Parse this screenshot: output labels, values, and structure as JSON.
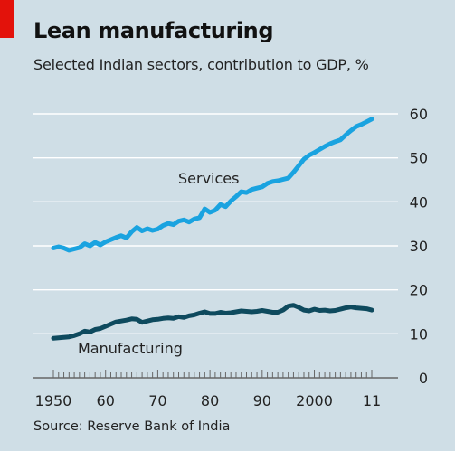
{
  "header": {
    "title": "Lean manufacturing",
    "subtitle": "Selected Indian sectors, contribution to GDP, %"
  },
  "footer": {
    "source": "Source: Reserve Bank of India"
  },
  "colors": {
    "services": "#1aa3e0",
    "manufacturing": "#0e4a5e",
    "grid": "#ffffff",
    "axis": "#666666",
    "background": "#cfdee6",
    "accent": "#e3120b"
  },
  "chart_data": {
    "type": "line",
    "title": "Lean manufacturing",
    "subtitle": "Selected Indian sectors, contribution to GDP, %",
    "xlabel": "",
    "ylabel": "",
    "xlim": [
      1950,
      2011
    ],
    "ylim": [
      0,
      60
    ],
    "y_ticks": [
      0,
      10,
      20,
      30,
      40,
      50,
      60
    ],
    "y_axis_side": "right",
    "x_ticks": [
      {
        "value": 1950,
        "label": "1950"
      },
      {
        "value": 1960,
        "label": "60"
      },
      {
        "value": 1970,
        "label": "70"
      },
      {
        "value": 1980,
        "label": "80"
      },
      {
        "value": 1990,
        "label": "90"
      },
      {
        "value": 2000,
        "label": "2000"
      },
      {
        "value": 2011,
        "label": "11"
      }
    ],
    "grid": true,
    "legend": "inline labels",
    "x": [
      1950,
      1951,
      1952,
      1953,
      1954,
      1955,
      1956,
      1957,
      1958,
      1959,
      1960,
      1961,
      1962,
      1963,
      1964,
      1965,
      1966,
      1967,
      1968,
      1969,
      1970,
      1971,
      1972,
      1973,
      1974,
      1975,
      1976,
      1977,
      1978,
      1979,
      1980,
      1981,
      1982,
      1983,
      1984,
      1985,
      1986,
      1987,
      1988,
      1989,
      1990,
      1991,
      1992,
      1993,
      1994,
      1995,
      1996,
      1997,
      1998,
      1999,
      2000,
      2001,
      2002,
      2003,
      2004,
      2005,
      2006,
      2007,
      2008,
      2009,
      2010,
      2011
    ],
    "series": [
      {
        "name": "Services",
        "values": [
          29.5,
          29.8,
          29.5,
          29.0,
          29.3,
          29.6,
          30.5,
          30.0,
          30.8,
          30.2,
          30.9,
          31.4,
          31.9,
          32.3,
          31.8,
          33.2,
          34.2,
          33.4,
          33.9,
          33.5,
          33.8,
          34.6,
          35.1,
          34.8,
          35.6,
          35.9,
          35.4,
          36.1,
          36.4,
          38.4,
          37.6,
          38.1,
          39.4,
          38.9,
          40.2,
          41.2,
          42.3,
          42.1,
          42.8,
          43.1,
          43.4,
          44.2,
          44.6,
          44.8,
          45.1,
          45.4,
          46.7,
          48.2,
          49.7,
          50.6,
          51.2,
          51.9,
          52.6,
          53.2,
          53.7,
          54.1,
          55.2,
          56.2,
          57.1,
          57.6,
          58.2,
          58.8
        ]
      },
      {
        "name": "Manufacturing",
        "values": [
          9.0,
          9.1,
          9.2,
          9.3,
          9.6,
          10.0,
          10.6,
          10.4,
          11.0,
          11.2,
          11.7,
          12.2,
          12.7,
          12.9,
          13.1,
          13.4,
          13.3,
          12.6,
          12.9,
          13.2,
          13.3,
          13.5,
          13.6,
          13.5,
          13.9,
          13.7,
          14.1,
          14.3,
          14.7,
          15.0,
          14.6,
          14.6,
          14.9,
          14.7,
          14.8,
          15.0,
          15.2,
          15.1,
          15.0,
          15.1,
          15.3,
          15.1,
          14.9,
          14.9,
          15.4,
          16.3,
          16.5,
          16.0,
          15.4,
          15.2,
          15.6,
          15.3,
          15.4,
          15.2,
          15.3,
          15.6,
          15.9,
          16.1,
          15.9,
          15.8,
          15.7,
          15.4
        ]
      }
    ],
    "annotations": [
      "Services",
      "Manufacturing"
    ]
  }
}
